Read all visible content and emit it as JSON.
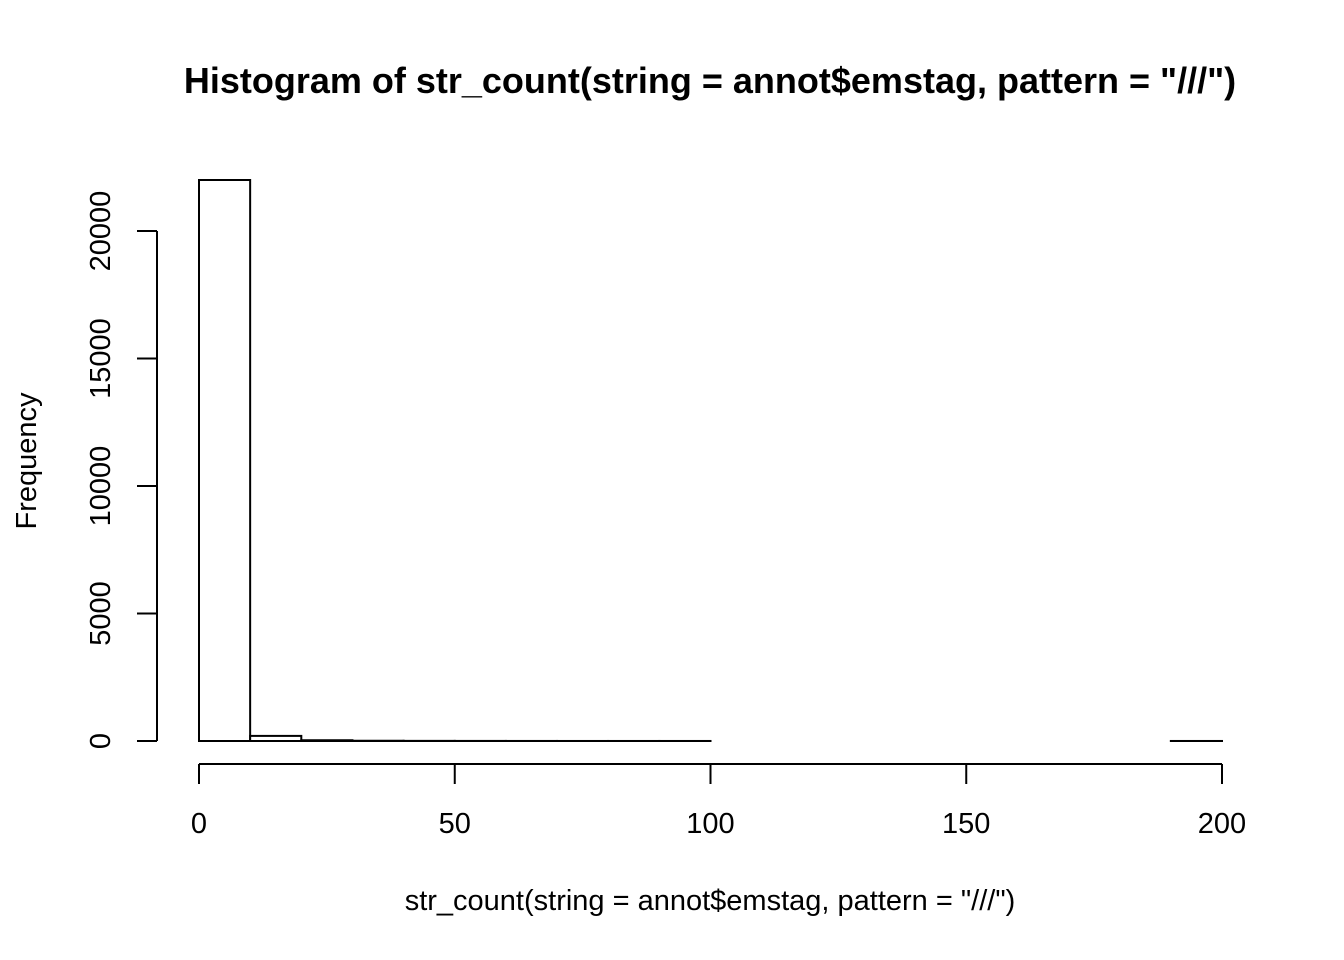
{
  "chart_data": {
    "type": "bar",
    "title": "Histogram of str_count(string = annot$emstag, pattern = \"///\")",
    "xlabel": "str_count(string = annot$emstag, pattern = \"///\")",
    "ylabel": "Frequency",
    "bins": [
      {
        "start": 0,
        "end": 10,
        "count": 22000
      },
      {
        "start": 10,
        "end": 20,
        "count": 200
      },
      {
        "start": 20,
        "end": 30,
        "count": 30
      },
      {
        "start": 30,
        "end": 40,
        "count": 10
      },
      {
        "start": 40,
        "end": 50,
        "count": 5
      },
      {
        "start": 50,
        "end": 60,
        "count": 3
      },
      {
        "start": 60,
        "end": 70,
        "count": 2
      },
      {
        "start": 70,
        "end": 80,
        "count": 1
      },
      {
        "start": 80,
        "end": 90,
        "count": 1
      },
      {
        "start": 90,
        "end": 100,
        "count": 1
      },
      {
        "start": 100,
        "end": 110,
        "count": 0
      },
      {
        "start": 110,
        "end": 120,
        "count": 0
      },
      {
        "start": 120,
        "end": 130,
        "count": 0
      },
      {
        "start": 130,
        "end": 140,
        "count": 0
      },
      {
        "start": 140,
        "end": 150,
        "count": 0
      },
      {
        "start": 150,
        "end": 160,
        "count": 0
      },
      {
        "start": 160,
        "end": 170,
        "count": 0
      },
      {
        "start": 170,
        "end": 180,
        "count": 0
      },
      {
        "start": 180,
        "end": 190,
        "count": 0
      },
      {
        "start": 190,
        "end": 200,
        "count": 1
      }
    ],
    "xlim": [
      0,
      200
    ],
    "ylim": [
      0,
      22000
    ],
    "xticks": [
      0,
      50,
      100,
      150,
      200
    ],
    "yticks": [
      0,
      5000,
      10000,
      15000,
      20000
    ],
    "xtick_labels": [
      "0",
      "50",
      "100",
      "150",
      "200"
    ],
    "ytick_labels": [
      "0",
      "5000",
      "10000",
      "15000",
      "20000"
    ],
    "grid": false,
    "bar_fill": "#ffffff",
    "bar_stroke": "#000000"
  }
}
